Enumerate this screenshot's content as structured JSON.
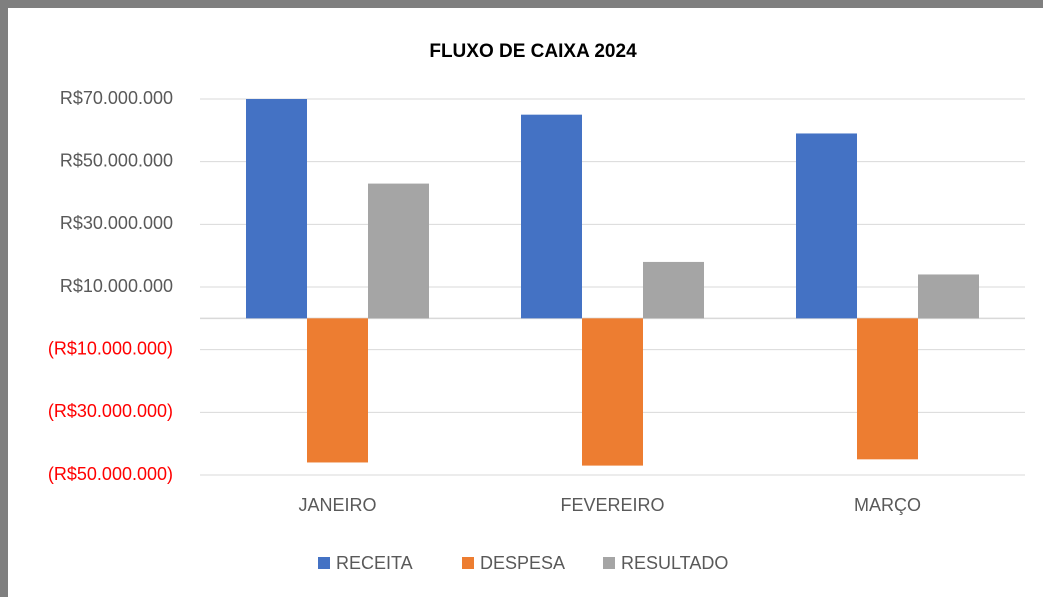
{
  "chart_data": {
    "type": "bar",
    "title": "FLUXO DE CAIXA 2024",
    "categories": [
      "JANEIRO",
      "FEVEREIRO",
      "MARÇO"
    ],
    "series": [
      {
        "name": "RECEITA",
        "color": "#4472c4",
        "values": [
          70000000,
          65000000,
          59000000
        ]
      },
      {
        "name": "DESPESA",
        "color": "#ed7d31",
        "values": [
          -46000000,
          -47000000,
          -45000000
        ]
      },
      {
        "name": "RESULTADO",
        "color": "#a5a5a5",
        "values": [
          43000000,
          18000000,
          14000000
        ]
      }
    ],
    "ylim": [
      -50000000,
      70000000
    ],
    "yticks": [
      {
        "value": -50000000,
        "label": "(R$50.000.000)"
      },
      {
        "value": -30000000,
        "label": "(R$30.000.000)"
      },
      {
        "value": -10000000,
        "label": "(R$10.000.000)"
      },
      {
        "value": 10000000,
        "label": "R$10.000.000"
      },
      {
        "value": 30000000,
        "label": "R$30.000.000"
      },
      {
        "value": 50000000,
        "label": "R$50.000.000"
      },
      {
        "value": 70000000,
        "label": "R$70.000.000"
      }
    ],
    "negative_tick_color": "#ff0000",
    "grid": true,
    "legend": "bottom"
  }
}
